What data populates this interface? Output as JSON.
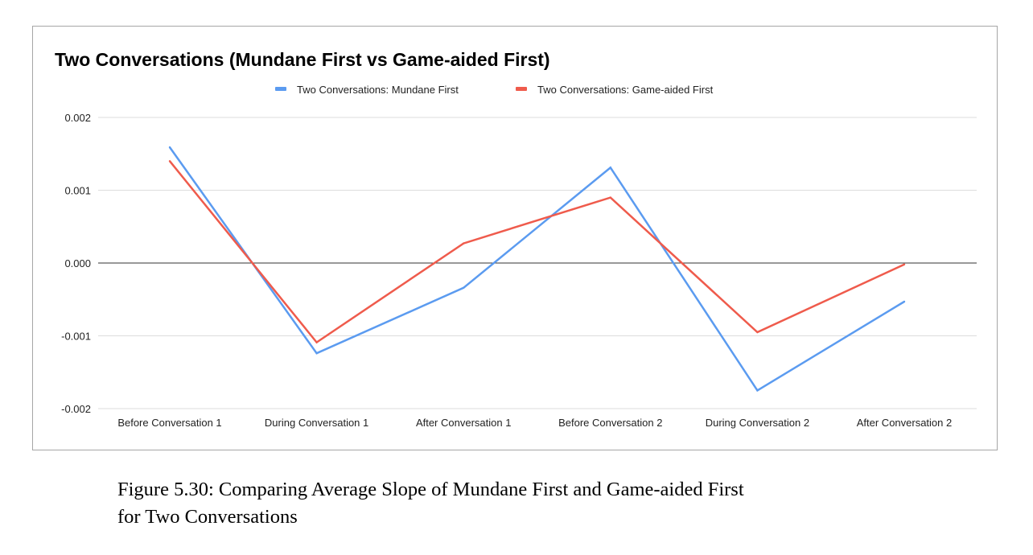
{
  "chart_data": {
    "type": "line",
    "title": "Two Conversations (Mundane First vs Game-aided First)",
    "xlabel": "",
    "ylabel": "",
    "categories": [
      "Before Conversation 1",
      "During Conversation 1",
      "After Conversation 1",
      "Before Conversation 2",
      "During Conversation 2",
      "After Conversation 2"
    ],
    "series": [
      {
        "name": "Two Conversations: Mundane First",
        "color": "#5b9bf0",
        "values": [
          0.00159,
          -0.00124,
          -0.00034,
          0.00131,
          -0.00175,
          -0.00053
        ]
      },
      {
        "name": "Two Conversations: Game-aided First",
        "color": "#ef5b4c",
        "values": [
          0.0014,
          -0.00109,
          0.00027,
          0.0009,
          -0.00095,
          -2e-05
        ]
      }
    ],
    "ylim": [
      -0.002,
      0.002
    ],
    "yticks": [
      0.002,
      0.001,
      0.0,
      -0.001,
      -0.002
    ],
    "ytick_labels": [
      "0.002",
      "0.001",
      "0.000",
      "-0.001",
      "-0.002"
    ],
    "grid": true,
    "legend_position": "top-center"
  },
  "caption": {
    "line1": "Figure 5.30: Comparing Average Slope of Mundane First and Game-aided First",
    "line2": "for Two Conversations"
  }
}
